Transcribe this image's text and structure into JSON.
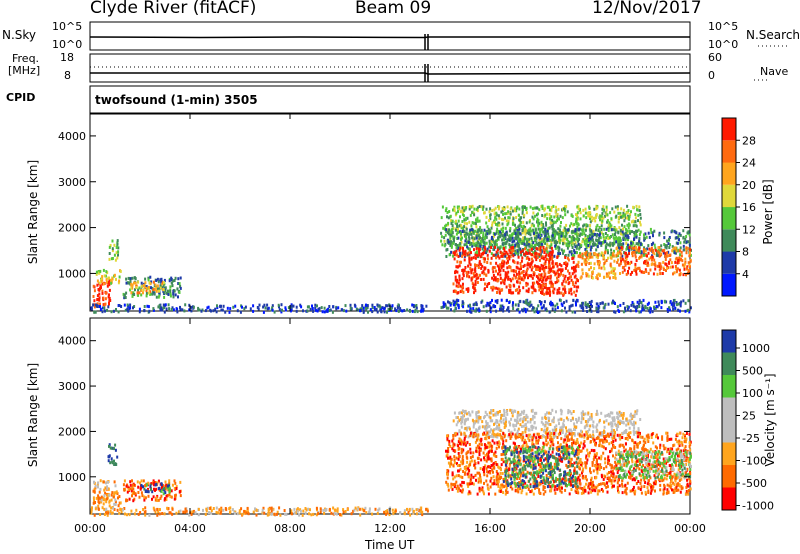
{
  "header": {
    "station": "Clyde River (fitACF)",
    "beam": "Beam 09",
    "date": "12/Nov/2017"
  },
  "strips": {
    "nsky_label": "N.Sky",
    "nsky_ticks": [
      "10^5",
      "10^0"
    ],
    "nsearch_label": "N.Search",
    "nsearch_ticks": [
      "10^5",
      "10^0"
    ],
    "freq_label_top": "Freq.",
    "freq_label_unit": "[MHz]",
    "freq_ticks": [
      "18",
      "8"
    ],
    "nave_label": "Nave",
    "nave_ticks": [
      "60",
      "0"
    ],
    "cpid_label": "CPID",
    "cpid_text": "twofsound (1-min) 3505"
  },
  "colors": {
    "power": [
      "#0018ff",
      "#1e3aa8",
      "#3f8a5a",
      "#55c83a",
      "#e0d83a",
      "#ffa51e",
      "#ff6a10",
      "#ff1a00"
    ],
    "velocity": [
      "#ff0000",
      "#ff6a00",
      "#ffa51e",
      "#bebebe",
      "#bebebe",
      "#55c83a",
      "#3f8a5a",
      "#1e3aa8"
    ]
  },
  "chart_data": [
    {
      "type": "heatmap",
      "quantity": "Power",
      "ylabel": "Slant Range [km]",
      "ylim": [
        180,
        4500
      ],
      "yticks": [
        1000,
        2000,
        3000,
        4000
      ],
      "xlim": [
        0,
        24
      ],
      "xticks": [
        "00:00",
        "04:00",
        "08:00",
        "12:00",
        "16:00",
        "20:00",
        "00:00"
      ],
      "colorbar_label": "Power [dB]",
      "colorbar_ticks": [
        "4",
        "8",
        "12",
        "16",
        "20",
        "24",
        "28"
      ],
      "regions": [
        {
          "t0": 0.1,
          "t1": 0.8,
          "r0": 300,
          "r1": 900,
          "level": 7
        },
        {
          "t0": 0.2,
          "t1": 1.2,
          "r0": 800,
          "r1": 1100,
          "level": 4
        },
        {
          "t0": 0.7,
          "t1": 1.1,
          "r0": 1300,
          "r1": 1750,
          "level": 3
        },
        {
          "t0": 1.3,
          "t1": 3.6,
          "r0": 500,
          "r1": 950,
          "level": 2
        },
        {
          "t0": 1.6,
          "t1": 3.0,
          "r0": 600,
          "r1": 850,
          "level": 5
        },
        {
          "t0": 0.0,
          "t1": 13.5,
          "r0": 180,
          "r1": 350,
          "level": 1
        },
        {
          "t0": 14.0,
          "t1": 22.0,
          "r0": 1600,
          "r1": 2500,
          "level": 3
        },
        {
          "t0": 14.2,
          "t1": 24.0,
          "r0": 1400,
          "r1": 2000,
          "level": 2
        },
        {
          "t0": 14.5,
          "t1": 18.5,
          "r0": 600,
          "r1": 1600,
          "level": 7
        },
        {
          "t0": 18.0,
          "t1": 19.5,
          "r0": 550,
          "r1": 1400,
          "level": 7
        },
        {
          "t0": 19.5,
          "t1": 21.0,
          "r0": 900,
          "r1": 1500,
          "level": 5
        },
        {
          "t0": 21.0,
          "t1": 24.0,
          "r0": 1000,
          "r1": 1600,
          "level": 6
        },
        {
          "t0": 14.0,
          "t1": 24.0,
          "r0": 180,
          "r1": 450,
          "level": 1
        }
      ]
    },
    {
      "type": "heatmap",
      "quantity": "Velocity",
      "ylabel": "Slant Range [km]",
      "ylim": [
        180,
        4500
      ],
      "yticks": [
        1000,
        2000,
        3000,
        4000
      ],
      "xlim": [
        0,
        24
      ],
      "xlabel": "Time UT",
      "xticks": [
        "00:00",
        "04:00",
        "08:00",
        "12:00",
        "16:00",
        "20:00",
        "00:00"
      ],
      "colorbar_label": "Velocity [m s⁻¹]",
      "colorbar_ticks": [
        "1000",
        "500",
        "100",
        "25",
        "-25",
        "-100",
        "-500",
        "-1000"
      ],
      "regions": [
        {
          "t0": 0.1,
          "t1": 1.2,
          "r0": 300,
          "r1": 950,
          "level": 2
        },
        {
          "t0": 0.7,
          "t1": 1.1,
          "r0": 1300,
          "r1": 1750,
          "level": 7
        },
        {
          "t0": 1.3,
          "t1": 3.6,
          "r0": 500,
          "r1": 950,
          "level": 1
        },
        {
          "t0": 2.0,
          "t1": 3.2,
          "r0": 650,
          "r1": 900,
          "level": 6
        },
        {
          "t0": 0.0,
          "t1": 13.5,
          "r0": 180,
          "r1": 350,
          "level": 2
        },
        {
          "t0": 14.5,
          "t1": 22.0,
          "r0": 1900,
          "r1": 2500,
          "level": 3
        },
        {
          "t0": 14.2,
          "t1": 24.0,
          "r0": 650,
          "r1": 2000,
          "level": 1
        },
        {
          "t0": 16.5,
          "t1": 19.5,
          "r0": 800,
          "r1": 1700,
          "level": 6
        },
        {
          "t0": 21.0,
          "t1": 24.0,
          "r0": 1000,
          "r1": 1600,
          "level": 5
        }
      ]
    }
  ]
}
